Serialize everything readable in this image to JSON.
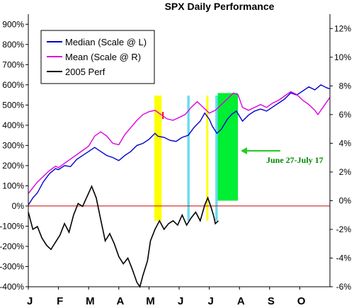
{
  "chart_data": {
    "type": "line",
    "title": "SPX Daily Performance",
    "x": {
      "ticks": [
        "J",
        "F",
        "M",
        "A",
        "M",
        "J",
        "J",
        "A",
        "S",
        "O"
      ]
    },
    "y_left": {
      "range": [
        -400,
        950
      ],
      "ticks": [
        "900%",
        "800%",
        "700%",
        "600%",
        "500%",
        "400%",
        "300%",
        "200%",
        "100%",
        "0%",
        "-100%",
        "-200%",
        "-300%",
        "-400%"
      ],
      "tick_values": [
        900,
        800,
        700,
        600,
        500,
        400,
        300,
        200,
        100,
        0,
        -100,
        -200,
        -300,
        -400
      ]
    },
    "y_right": {
      "range": [
        -6,
        13
      ],
      "ticks": [
        "12%",
        "10%",
        "8%",
        "6%",
        "4%",
        "2%",
        "0%",
        "-2%",
        "-4%",
        "-6%"
      ],
      "tick_values": [
        12,
        10,
        8,
        6,
        4,
        2,
        0,
        -2,
        -4,
        -6
      ]
    },
    "grid": false,
    "legend": "top-left",
    "series": [
      {
        "name": "Median (Scale @ L)",
        "color": "#0000cc",
        "axis": "left",
        "points": [
          [
            0.0,
            5
          ],
          [
            0.15,
            40
          ],
          [
            0.3,
            65
          ],
          [
            0.5,
            120
          ],
          [
            0.7,
            160
          ],
          [
            0.9,
            185
          ],
          [
            1.0,
            180
          ],
          [
            1.2,
            200
          ],
          [
            1.4,
            195
          ],
          [
            1.6,
            230
          ],
          [
            1.8,
            250
          ],
          [
            2.0,
            270
          ],
          [
            2.2,
            290
          ],
          [
            2.4,
            270
          ],
          [
            2.6,
            250
          ],
          [
            2.8,
            240
          ],
          [
            3.0,
            225
          ],
          [
            3.2,
            250
          ],
          [
            3.4,
            270
          ],
          [
            3.6,
            300
          ],
          [
            3.8,
            310
          ],
          [
            4.0,
            330
          ],
          [
            4.2,
            360
          ],
          [
            4.3,
            345
          ],
          [
            4.5,
            340
          ],
          [
            4.7,
            325
          ],
          [
            4.9,
            320
          ],
          [
            5.1,
            340
          ],
          [
            5.3,
            350
          ],
          [
            5.5,
            390
          ],
          [
            5.7,
            420
          ],
          [
            5.85,
            460
          ],
          [
            6.0,
            430
          ],
          [
            6.1,
            395
          ],
          [
            6.25,
            360
          ],
          [
            6.4,
            380
          ],
          [
            6.6,
            430
          ],
          [
            6.75,
            455
          ],
          [
            6.9,
            470
          ],
          [
            7.1,
            420
          ],
          [
            7.3,
            450
          ],
          [
            7.5,
            470
          ],
          [
            7.7,
            480
          ],
          [
            7.9,
            470
          ],
          [
            8.1,
            490
          ],
          [
            8.3,
            510
          ],
          [
            8.5,
            530
          ],
          [
            8.7,
            560
          ],
          [
            8.9,
            550
          ],
          [
            9.1,
            570
          ],
          [
            9.3,
            590
          ],
          [
            9.5,
            575
          ],
          [
            9.7,
            600
          ],
          [
            9.9,
            585
          ],
          [
            10.0,
            580
          ]
        ]
      },
      {
        "name": "Mean (Scale @ R)",
        "color": "#dd00dd",
        "axis": "right",
        "points": [
          [
            0.0,
            0.5
          ],
          [
            0.15,
            0.9
          ],
          [
            0.3,
            1.3
          ],
          [
            0.5,
            1.7
          ],
          [
            0.7,
            2.1
          ],
          [
            0.9,
            2.4
          ],
          [
            1.0,
            2.3
          ],
          [
            1.2,
            2.6
          ],
          [
            1.4,
            2.9
          ],
          [
            1.6,
            3.2
          ],
          [
            1.8,
            3.5
          ],
          [
            2.0,
            3.8
          ],
          [
            2.2,
            4.5
          ],
          [
            2.4,
            4.8
          ],
          [
            2.6,
            4.5
          ],
          [
            2.8,
            4.0
          ],
          [
            3.0,
            3.9
          ],
          [
            3.2,
            4.6
          ],
          [
            3.4,
            5.1
          ],
          [
            3.6,
            5.6
          ],
          [
            3.8,
            6.0
          ],
          [
            4.0,
            6.2
          ],
          [
            4.2,
            6.3
          ],
          [
            4.4,
            6.0
          ],
          [
            4.6,
            5.7
          ],
          [
            4.8,
            5.6
          ],
          [
            5.0,
            5.8
          ],
          [
            5.2,
            6.0
          ],
          [
            5.4,
            6.5
          ],
          [
            5.6,
            6.9
          ],
          [
            5.8,
            6.5
          ],
          [
            6.0,
            6.1
          ],
          [
            6.2,
            6.3
          ],
          [
            6.4,
            6.7
          ],
          [
            6.6,
            7.1
          ],
          [
            6.8,
            7.5
          ],
          [
            6.95,
            7.4
          ],
          [
            7.1,
            6.5
          ],
          [
            7.3,
            6.3
          ],
          [
            7.5,
            6.5
          ],
          [
            7.7,
            6.7
          ],
          [
            7.9,
            6.5
          ],
          [
            8.1,
            6.8
          ],
          [
            8.3,
            7.0
          ],
          [
            8.5,
            7.3
          ],
          [
            8.7,
            7.6
          ],
          [
            8.9,
            7.4
          ],
          [
            9.1,
            7.0
          ],
          [
            9.3,
            6.7
          ],
          [
            9.5,
            6.3
          ],
          [
            9.6,
            6.0
          ],
          [
            9.8,
            6.6
          ],
          [
            10.0,
            7.2
          ]
        ]
      },
      {
        "name": "2005 Perf",
        "color": "#000000",
        "axis": "right",
        "points": [
          [
            0.0,
            -0.8
          ],
          [
            0.15,
            -2.0
          ],
          [
            0.3,
            -1.8
          ],
          [
            0.45,
            -2.6
          ],
          [
            0.6,
            -3.1
          ],
          [
            0.75,
            -3.4
          ],
          [
            0.9,
            -2.9
          ],
          [
            1.05,
            -2.4
          ],
          [
            1.2,
            -1.6
          ],
          [
            1.35,
            -2.2
          ],
          [
            1.5,
            -1.0
          ],
          [
            1.65,
            -0.2
          ],
          [
            1.8,
            -0.4
          ],
          [
            1.95,
            0.3
          ],
          [
            2.1,
            1.0
          ],
          [
            2.25,
            0.2
          ],
          [
            2.4,
            -1.3
          ],
          [
            2.55,
            -2.8
          ],
          [
            2.7,
            -2.3
          ],
          [
            2.85,
            -3.0
          ],
          [
            3.0,
            -3.9
          ],
          [
            3.15,
            -4.4
          ],
          [
            3.3,
            -4.0
          ],
          [
            3.45,
            -4.8
          ],
          [
            3.6,
            -5.7
          ],
          [
            3.7,
            -6.0
          ],
          [
            3.8,
            -5.2
          ],
          [
            3.95,
            -4.2
          ],
          [
            4.05,
            -2.8
          ],
          [
            4.2,
            -2.0
          ],
          [
            4.35,
            -1.4
          ],
          [
            4.5,
            -2.0
          ],
          [
            4.65,
            -1.6
          ],
          [
            4.8,
            -1.4
          ],
          [
            4.95,
            -1.7
          ],
          [
            5.1,
            -1.0
          ],
          [
            5.25,
            -1.7
          ],
          [
            5.4,
            -1.2
          ],
          [
            5.55,
            -0.8
          ],
          [
            5.7,
            -1.4
          ],
          [
            5.85,
            -0.3
          ],
          [
            5.95,
            0.2
          ],
          [
            6.05,
            -0.4
          ],
          [
            6.15,
            -1.1
          ],
          [
            6.2,
            -1.6
          ],
          [
            6.3,
            -1.4
          ]
        ]
      }
    ],
    "highlights": [
      {
        "from": 4.18,
        "to": 4.42,
        "color": "#ffff00"
      },
      {
        "from": 4.44,
        "to": 4.48,
        "color": "#ff0000",
        "top_only": true
      },
      {
        "from": 5.27,
        "to": 5.35,
        "color": "#66ddee"
      },
      {
        "from": 5.9,
        "to": 5.97,
        "color": "#ffff00"
      },
      {
        "from": 6.2,
        "to": 6.28,
        "color": "#66ddee"
      },
      {
        "from": 6.28,
        "to": 6.95,
        "color": "#00ee33"
      }
    ],
    "annotation": {
      "text": "June 27-July 17",
      "color": "#008800",
      "arrow_color": "#22cc22"
    }
  }
}
